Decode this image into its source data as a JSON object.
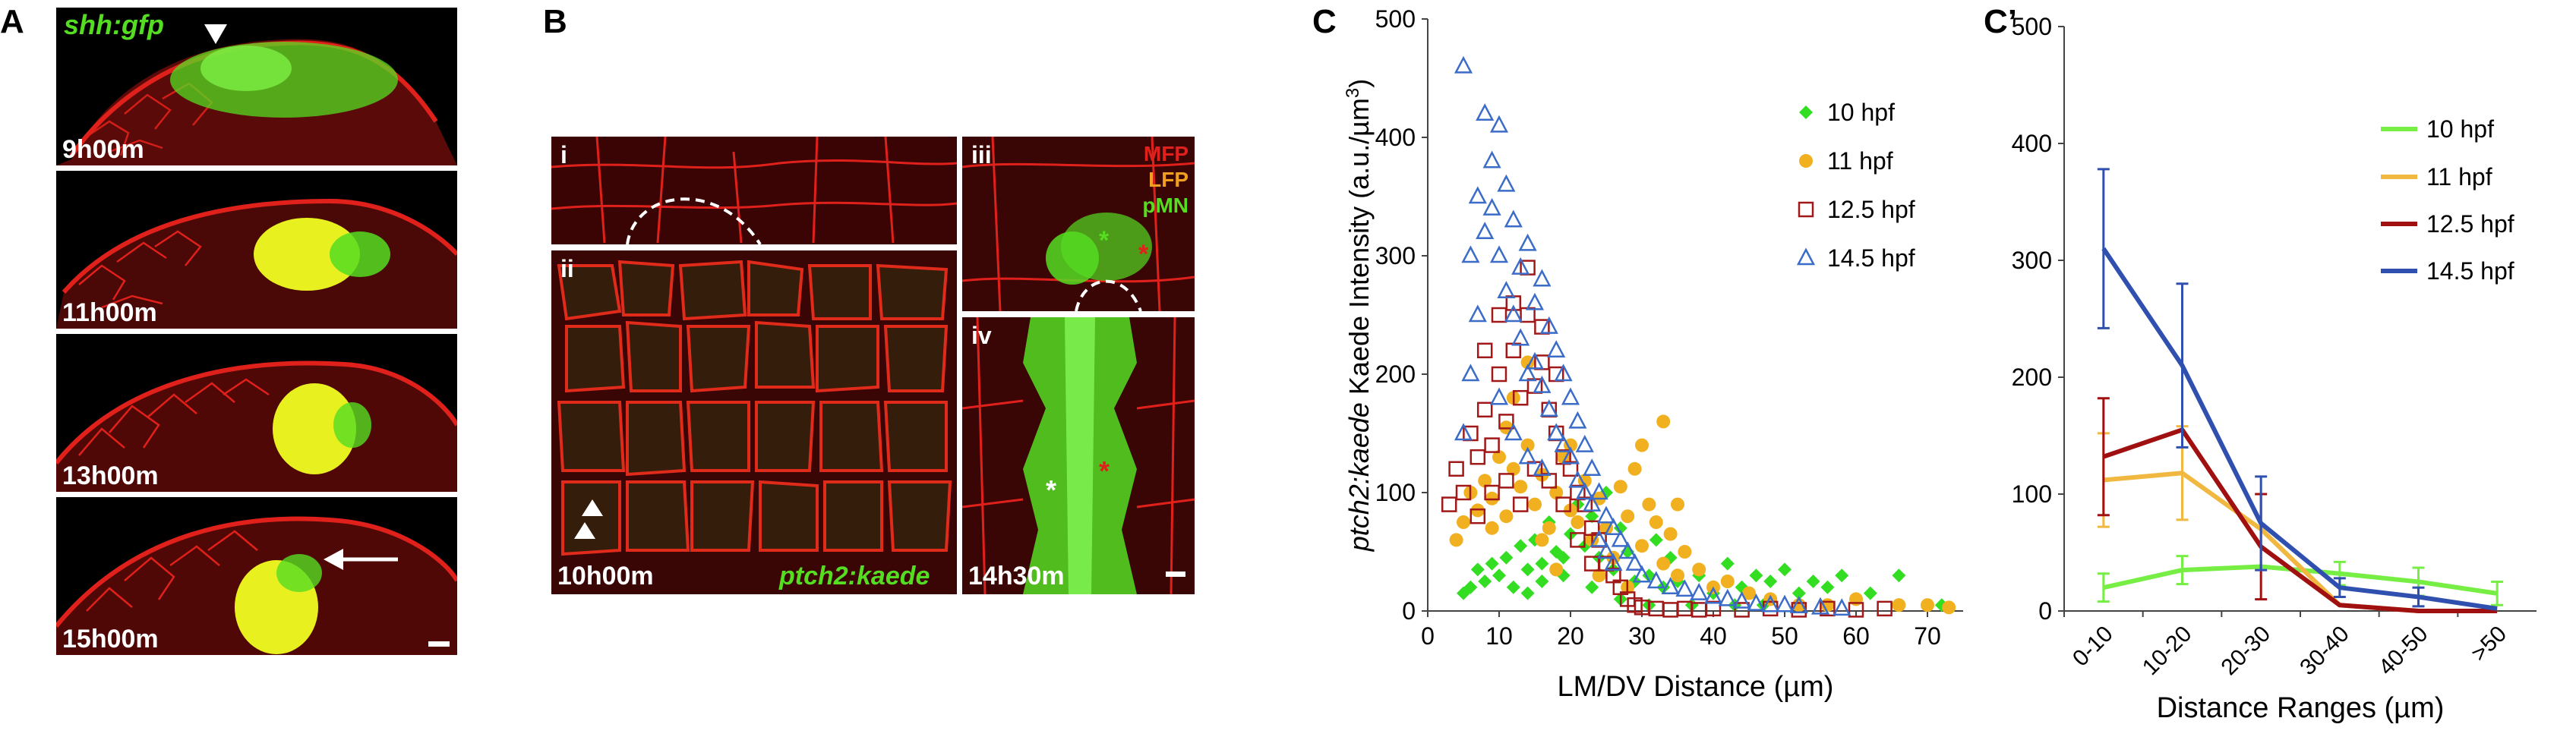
{
  "panels": {
    "A": {
      "letter": "A",
      "title": "shh:gfp",
      "timestamps": [
        "9h00m",
        "11h00m",
        "13h00m",
        "15h00m"
      ]
    },
    "B": {
      "letter": "B",
      "subpanels": [
        "i",
        "ii",
        "iii",
        "iv"
      ],
      "timestamps": [
        "10h00m",
        "14h30m"
      ],
      "reporter": "ptch2:kaede",
      "legend": [
        "MFP",
        "LFP",
        "pMN"
      ]
    },
    "C": {
      "letter": "C"
    },
    "Cprime": {
      "letter": "C’"
    }
  },
  "colors": {
    "red_membrane": "#e0201a",
    "green_gfp": "#55dd22",
    "yellow_merge": "#e8f020",
    "s10": "#33dd22",
    "s11": "#f0b020",
    "s125": "#a01818",
    "s145": "#3b6cc8",
    "line10": "#77ee44",
    "line11": "#f0b840",
    "line125": "#a01010",
    "line145": "#3050b0"
  },
  "chart_data": [
    {
      "type": "scatter",
      "title": "",
      "xlabel": "LM/DV Distance (µm)",
      "ylabel_italic": "ptch2:kaede",
      "ylabel_rest": " Kaede Intensity (a.u./µm",
      "ylabel_sup": "3",
      "ylabel_close": ")",
      "xlim": [
        0,
        75
      ],
      "ylim": [
        0,
        500
      ],
      "xticks": [
        0,
        10,
        20,
        30,
        40,
        50,
        60,
        70
      ],
      "yticks": [
        0,
        100,
        200,
        300,
        400,
        500
      ],
      "legend_position": "top-right",
      "series": [
        {
          "name": "10 hpf",
          "marker": "diamond",
          "points": [
            [
              5,
              15
            ],
            [
              6,
              20
            ],
            [
              7,
              35
            ],
            [
              8,
              25
            ],
            [
              9,
              40
            ],
            [
              10,
              30
            ],
            [
              11,
              45
            ],
            [
              12,
              20
            ],
            [
              13,
              55
            ],
            [
              14,
              35
            ],
            [
              15,
              60
            ],
            [
              16,
              40
            ],
            [
              17,
              75
            ],
            [
              18,
              50
            ],
            [
              19,
              30
            ],
            [
              20,
              65
            ],
            [
              21,
              90
            ],
            [
              22,
              55
            ],
            [
              23,
              80
            ],
            [
              24,
              45
            ],
            [
              25,
              100
            ],
            [
              26,
              35
            ],
            [
              27,
              70
            ],
            [
              28,
              50
            ],
            [
              29,
              25
            ],
            [
              30,
              55
            ],
            [
              31,
              30
            ],
            [
              32,
              60
            ],
            [
              33,
              20
            ],
            [
              34,
              45
            ],
            [
              35,
              25
            ],
            [
              36,
              50
            ],
            [
              38,
              30
            ],
            [
              40,
              15
            ],
            [
              42,
              40
            ],
            [
              44,
              20
            ],
            [
              46,
              30
            ],
            [
              48,
              25
            ],
            [
              50,
              35
            ],
            [
              52,
              15
            ],
            [
              54,
              25
            ],
            [
              56,
              20
            ],
            [
              58,
              30
            ],
            [
              62,
              15
            ],
            [
              66,
              30
            ],
            [
              72,
              5
            ],
            [
              14,
              15
            ],
            [
              16,
              25
            ],
            [
              19,
              45
            ],
            [
              23,
              20
            ],
            [
              27,
              10
            ],
            [
              31,
              5
            ],
            [
              37,
              5
            ],
            [
              43,
              5
            ],
            [
              47,
              5
            ]
          ]
        },
        {
          "name": "11 hpf",
          "marker": "circle",
          "points": [
            [
              4,
              60
            ],
            [
              5,
              75
            ],
            [
              6,
              100
            ],
            [
              7,
              85
            ],
            [
              8,
              110
            ],
            [
              9,
              95
            ],
            [
              10,
              130
            ],
            [
              11,
              80
            ],
            [
              12,
              120
            ],
            [
              13,
              105
            ],
            [
              14,
              140
            ],
            [
              15,
              90
            ],
            [
              16,
              115
            ],
            [
              17,
              70
            ],
            [
              18,
              100
            ],
            [
              19,
              130
            ],
            [
              20,
              85
            ],
            [
              21,
              75
            ],
            [
              22,
              110
            ],
            [
              23,
              60
            ],
            [
              24,
              95
            ],
            [
              25,
              70
            ],
            [
              26,
              45
            ],
            [
              27,
              105
            ],
            [
              28,
              80
            ],
            [
              29,
              120
            ],
            [
              30,
              55
            ],
            [
              31,
              90
            ],
            [
              32,
              75
            ],
            [
              33,
              40
            ],
            [
              34,
              65
            ],
            [
              35,
              30
            ],
            [
              36,
              50
            ],
            [
              38,
              35
            ],
            [
              40,
              20
            ],
            [
              42,
              25
            ],
            [
              45,
              15
            ],
            [
              48,
              10
            ],
            [
              52,
              5
            ],
            [
              56,
              5
            ],
            [
              60,
              10
            ],
            [
              66,
              5
            ],
            [
              70,
              5
            ],
            [
              73,
              3
            ],
            [
              12,
              180
            ],
            [
              14,
              210
            ],
            [
              16,
              60
            ],
            [
              18,
              35
            ],
            [
              20,
              140
            ],
            [
              24,
              30
            ],
            [
              28,
              20
            ],
            [
              30,
              140
            ],
            [
              33,
              160
            ],
            [
              35,
              90
            ],
            [
              9,
              70
            ],
            [
              11,
              155
            ]
          ]
        },
        {
          "name": "12.5 hpf",
          "marker": "square",
          "points": [
            [
              3,
              90
            ],
            [
              4,
              120
            ],
            [
              5,
              100
            ],
            [
              6,
              150
            ],
            [
              7,
              130
            ],
            [
              8,
              170
            ],
            [
              9,
              140
            ],
            [
              10,
              200
            ],
            [
              11,
              160
            ],
            [
              12,
              220
            ],
            [
              13,
              180
            ],
            [
              14,
              250
            ],
            [
              15,
              190
            ],
            [
              16,
              210
            ],
            [
              17,
              170
            ],
            [
              18,
              150
            ],
            [
              19,
              130
            ],
            [
              20,
              120
            ],
            [
              21,
              100
            ],
            [
              22,
              90
            ],
            [
              23,
              70
            ],
            [
              24,
              60
            ],
            [
              25,
              40
            ],
            [
              26,
              30
            ],
            [
              27,
              20
            ],
            [
              28,
              10
            ],
            [
              29,
              5
            ],
            [
              30,
              3
            ],
            [
              32,
              2
            ],
            [
              34,
              1
            ],
            [
              36,
              2
            ],
            [
              38,
              1
            ],
            [
              40,
              2
            ],
            [
              44,
              1
            ],
            [
              48,
              2
            ],
            [
              52,
              1
            ],
            [
              56,
              2
            ],
            [
              60,
              1
            ],
            [
              64,
              2
            ],
            [
              8,
              220
            ],
            [
              10,
              250
            ],
            [
              12,
              260
            ],
            [
              14,
              290
            ],
            [
              16,
              240
            ],
            [
              18,
              200
            ],
            [
              11,
              110
            ],
            [
              13,
              90
            ],
            [
              15,
              120
            ],
            [
              17,
              110
            ],
            [
              19,
              90
            ],
            [
              7,
              80
            ],
            [
              9,
              100
            ],
            [
              21,
              60
            ],
            [
              23,
              40
            ]
          ]
        },
        {
          "name": "14.5 hpf",
          "marker": "triangle",
          "points": [
            [
              5,
              460
            ],
            [
              6,
              300
            ],
            [
              7,
              350
            ],
            [
              8,
              420
            ],
            [
              9,
              380
            ],
            [
              10,
              410
            ],
            [
              11,
              360
            ],
            [
              12,
              330
            ],
            [
              13,
              290
            ],
            [
              14,
              310
            ],
            [
              15,
              260
            ],
            [
              16,
              280
            ],
            [
              17,
              240
            ],
            [
              18,
              220
            ],
            [
              19,
              200
            ],
            [
              20,
              180
            ],
            [
              21,
              160
            ],
            [
              22,
              140
            ],
            [
              23,
              120
            ],
            [
              24,
              100
            ],
            [
              25,
              80
            ],
            [
              26,
              70
            ],
            [
              27,
              60
            ],
            [
              28,
              50
            ],
            [
              29,
              40
            ],
            [
              30,
              30
            ],
            [
              32,
              25
            ],
            [
              34,
              20
            ],
            [
              36,
              18
            ],
            [
              38,
              15
            ],
            [
              40,
              12
            ],
            [
              42,
              10
            ],
            [
              44,
              8
            ],
            [
              46,
              6
            ],
            [
              48,
              5
            ],
            [
              50,
              5
            ],
            [
              52,
              4
            ],
            [
              55,
              3
            ],
            [
              58,
              2
            ],
            [
              8,
              320
            ],
            [
              9,
              340
            ],
            [
              10,
              300
            ],
            [
              11,
              270
            ],
            [
              12,
              250
            ],
            [
              13,
              230
            ],
            [
              14,
              200
            ],
            [
              15,
              210
            ],
            [
              16,
              190
            ],
            [
              17,
              170
            ],
            [
              18,
              150
            ],
            [
              19,
              140
            ],
            [
              20,
              130
            ],
            [
              21,
              110
            ],
            [
              22,
              100
            ],
            [
              23,
              90
            ],
            [
              24,
              60
            ],
            [
              25,
              50
            ],
            [
              26,
              40
            ],
            [
              7,
              250
            ],
            [
              6,
              200
            ],
            [
              5,
              150
            ],
            [
              10,
              180
            ],
            [
              12,
              150
            ],
            [
              14,
              130
            ],
            [
              16,
              120
            ]
          ]
        }
      ]
    },
    {
      "type": "line",
      "title": "",
      "xlabel": "Distance Ranges (µm)",
      "ylabel": "",
      "categories": [
        "0-10",
        "10-20",
        "20-30",
        "30-40",
        "40-50",
        ">50"
      ],
      "ylim": [
        0,
        500
      ],
      "yticks": [
        0,
        100,
        200,
        300,
        400,
        500
      ],
      "legend_position": "top-right",
      "series": [
        {
          "name": "10 hpf",
          "values": [
            20,
            35,
            38,
            32,
            25,
            15
          ],
          "errors": [
            12,
            12,
            0,
            10,
            12,
            10
          ]
        },
        {
          "name": "11 hpf",
          "values": [
            112,
            118,
            70,
            5,
            0,
            0
          ],
          "errors": [
            40,
            40,
            0,
            0,
            0,
            0
          ]
        },
        {
          "name": "12.5 hpf",
          "values": [
            132,
            155,
            55,
            5,
            0,
            0
          ],
          "errors": [
            50,
            0,
            45,
            0,
            0,
            0
          ]
        },
        {
          "name": "14.5 hpf",
          "values": [
            310,
            210,
            75,
            20,
            12,
            2
          ],
          "errors": [
            68,
            70,
            40,
            8,
            8,
            0
          ]
        }
      ]
    }
  ]
}
